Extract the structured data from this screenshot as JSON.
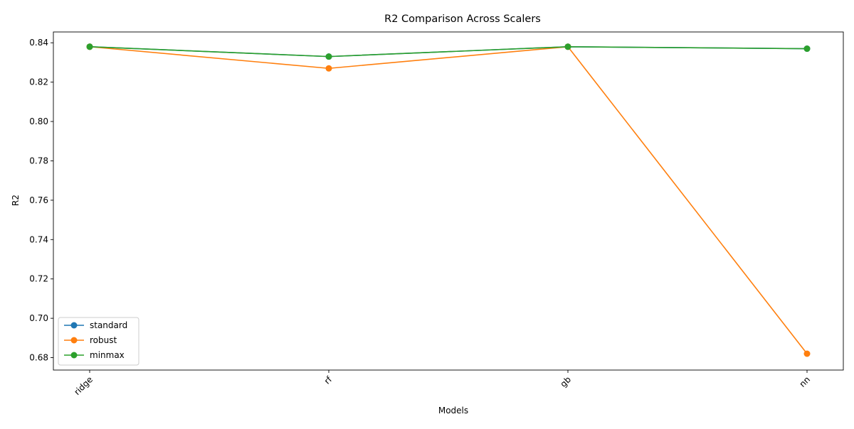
{
  "chart_data": {
    "type": "line",
    "title": "R2 Comparison Across Scalers",
    "xlabel": "Models",
    "ylabel": "R2",
    "categories": [
      "ridge",
      "rf",
      "gb",
      "nn"
    ],
    "ylim": [
      0.6737,
      0.8455
    ],
    "yticks": [
      0.68,
      0.7,
      0.72,
      0.74,
      0.76,
      0.78,
      0.8,
      0.82,
      0.84
    ],
    "ytick_labels": [
      "0.68",
      "0.70",
      "0.72",
      "0.74",
      "0.76",
      "0.78",
      "0.80",
      "0.82",
      "0.84"
    ],
    "xtick_rotation_deg": 45,
    "grid": false,
    "legend_position": "lower-left",
    "marker": "circle",
    "series": [
      {
        "name": "standard",
        "color": "#1f77b4",
        "values": [
          0.838,
          0.833,
          0.838,
          0.837
        ]
      },
      {
        "name": "robust",
        "color": "#ff7f0e",
        "values": [
          0.838,
          0.827,
          0.838,
          0.682
        ]
      },
      {
        "name": "minmax",
        "color": "#2ca02c",
        "values": [
          0.838,
          0.833,
          0.838,
          0.837
        ]
      }
    ]
  }
}
